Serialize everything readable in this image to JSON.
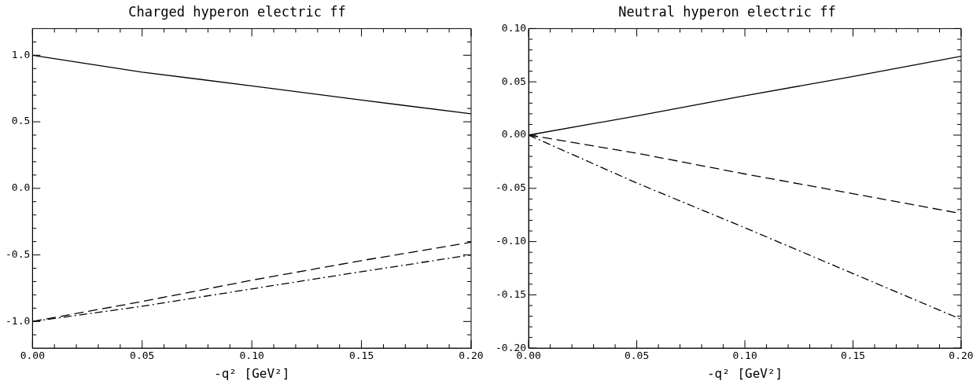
{
  "chart_data": [
    {
      "type": "line",
      "title": "Charged hyperon electric ff",
      "xlabel": "-q² [GeV²]",
      "x": [
        0,
        0.05,
        0.1,
        0.15,
        0.2
      ],
      "xlim": [
        0,
        0.2
      ],
      "xticks": [
        {
          "value": 0,
          "label": "0.00"
        },
        {
          "value": 0.01,
          "label": null
        },
        {
          "value": 0.02,
          "label": null
        },
        {
          "value": 0.03,
          "label": null
        },
        {
          "value": 0.04,
          "label": null
        },
        {
          "value": 0.05,
          "label": "0.05"
        },
        {
          "value": 0.06,
          "label": null
        },
        {
          "value": 0.07,
          "label": null
        },
        {
          "value": 0.08,
          "label": null
        },
        {
          "value": 0.09,
          "label": null
        },
        {
          "value": 0.1,
          "label": "0.10"
        },
        {
          "value": 0.11,
          "label": null
        },
        {
          "value": 0.12,
          "label": null
        },
        {
          "value": 0.13,
          "label": null
        },
        {
          "value": 0.14,
          "label": null
        },
        {
          "value": 0.15,
          "label": "0.15"
        },
        {
          "value": 0.16,
          "label": null
        },
        {
          "value": 0.17,
          "label": null
        },
        {
          "value": 0.18,
          "label": null
        },
        {
          "value": 0.19,
          "label": null
        },
        {
          "value": 0.2,
          "label": "0.20"
        }
      ],
      "ylim": [
        -1.2,
        1.2
      ],
      "yticks": [
        {
          "value": -1.1,
          "label": null
        },
        {
          "value": -1,
          "label": "-1.0"
        },
        {
          "value": -0.9,
          "label": null
        },
        {
          "value": -0.8,
          "label": null
        },
        {
          "value": -0.7,
          "label": null
        },
        {
          "value": -0.6,
          "label": null
        },
        {
          "value": -0.5,
          "label": "-0.5"
        },
        {
          "value": -0.4,
          "label": null
        },
        {
          "value": -0.3,
          "label": null
        },
        {
          "value": -0.2,
          "label": null
        },
        {
          "value": -0.1,
          "label": null
        },
        {
          "value": 0,
          "label": "0.0"
        },
        {
          "value": 0.1,
          "label": null
        },
        {
          "value": 0.2,
          "label": null
        },
        {
          "value": 0.3,
          "label": null
        },
        {
          "value": 0.4,
          "label": null
        },
        {
          "value": 0.5,
          "label": "0.5"
        },
        {
          "value": 0.6,
          "label": null
        },
        {
          "value": 0.7,
          "label": null
        },
        {
          "value": 0.8,
          "label": null
        },
        {
          "value": 0.9,
          "label": null
        },
        {
          "value": 1,
          "label": "1.0"
        },
        {
          "value": 1.1,
          "label": null
        }
      ],
      "grid": false,
      "legend": false,
      "marker": "none",
      "series": [
        {
          "color": "#000000",
          "line_style": "solid",
          "values": [
            1.0,
            0.873,
            0.77,
            0.663,
            0.56
          ]
        },
        {
          "color": "#000000",
          "line_style": "dashed",
          "values": [
            -1.0,
            -0.85,
            -0.69,
            -0.543,
            -0.405
          ]
        },
        {
          "color": "#000000",
          "line_style": "dashdot",
          "values": [
            -1.0,
            -0.886,
            -0.755,
            -0.626,
            -0.5
          ]
        }
      ]
    },
    {
      "type": "line",
      "title": "Neutral hyperon electric ff",
      "xlabel": "-q² [GeV²]",
      "x": [
        0,
        0.05,
        0.1,
        0.15,
        0.2
      ],
      "xlim": [
        0,
        0.2
      ],
      "xticks": [
        {
          "value": 0,
          "label": "0.00"
        },
        {
          "value": 0.01,
          "label": null
        },
        {
          "value": 0.02,
          "label": null
        },
        {
          "value": 0.03,
          "label": null
        },
        {
          "value": 0.04,
          "label": null
        },
        {
          "value": 0.05,
          "label": "0.05"
        },
        {
          "value": 0.06,
          "label": null
        },
        {
          "value": 0.07,
          "label": null
        },
        {
          "value": 0.08,
          "label": null
        },
        {
          "value": 0.09,
          "label": null
        },
        {
          "value": 0.1,
          "label": "0.10"
        },
        {
          "value": 0.11,
          "label": null
        },
        {
          "value": 0.12,
          "label": null
        },
        {
          "value": 0.13,
          "label": null
        },
        {
          "value": 0.14,
          "label": null
        },
        {
          "value": 0.15,
          "label": "0.15"
        },
        {
          "value": 0.16,
          "label": null
        },
        {
          "value": 0.17,
          "label": null
        },
        {
          "value": 0.18,
          "label": null
        },
        {
          "value": 0.19,
          "label": null
        },
        {
          "value": 0.2,
          "label": "0.20"
        }
      ],
      "ylim": [
        -0.2,
        0.1
      ],
      "yticks": [
        {
          "value": -0.2,
          "label": "-0.20"
        },
        {
          "value": -0.19,
          "label": null
        },
        {
          "value": -0.18,
          "label": null
        },
        {
          "value": -0.17,
          "label": null
        },
        {
          "value": -0.16,
          "label": null
        },
        {
          "value": -0.15,
          "label": "-0.15"
        },
        {
          "value": -0.14,
          "label": null
        },
        {
          "value": -0.13,
          "label": null
        },
        {
          "value": -0.12,
          "label": null
        },
        {
          "value": -0.11,
          "label": null
        },
        {
          "value": -0.1,
          "label": "-0.10"
        },
        {
          "value": -0.09,
          "label": null
        },
        {
          "value": -0.08,
          "label": null
        },
        {
          "value": -0.07,
          "label": null
        },
        {
          "value": -0.06,
          "label": null
        },
        {
          "value": -0.05,
          "label": "-0.05"
        },
        {
          "value": -0.04,
          "label": null
        },
        {
          "value": -0.03,
          "label": null
        },
        {
          "value": -0.02,
          "label": null
        },
        {
          "value": -0.01,
          "label": null
        },
        {
          "value": 0,
          "label": "0.00"
        },
        {
          "value": 0.01,
          "label": null
        },
        {
          "value": 0.02,
          "label": null
        },
        {
          "value": 0.03,
          "label": null
        },
        {
          "value": 0.04,
          "label": null
        },
        {
          "value": 0.05,
          "label": "0.05"
        },
        {
          "value": 0.06,
          "label": null
        },
        {
          "value": 0.07,
          "label": null
        },
        {
          "value": 0.08,
          "label": null
        },
        {
          "value": 0.09,
          "label": null
        },
        {
          "value": 0.1,
          "label": "0.10"
        }
      ],
      "grid": false,
      "legend": false,
      "marker": "none",
      "series": [
        {
          "color": "#000000",
          "line_style": "solid",
          "values": [
            0,
            0.018,
            0.037,
            0.055,
            0.074
          ]
        },
        {
          "color": "#000000",
          "line_style": "dashed",
          "values": [
            0,
            -0.017,
            -0.0365,
            -0.055,
            -0.0737
          ]
        },
        {
          "color": "#000000",
          "line_style": "dashdot",
          "values": [
            0,
            -0.045,
            -0.087,
            -0.13,
            -0.173
          ]
        }
      ]
    }
  ]
}
